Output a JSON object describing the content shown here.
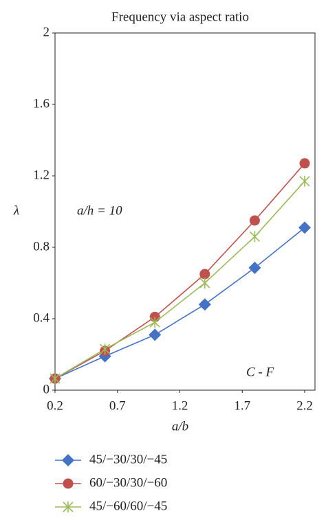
{
  "chart_data": {
    "type": "line",
    "title": "Frequency via aspect ratio",
    "x_label": "a/b",
    "y_label": "λ",
    "annotations": [
      "a/h = 10",
      "C - F"
    ],
    "x": [
      0.2,
      0.6,
      1.0,
      1.4,
      1.8,
      2.2
    ],
    "series": [
      {
        "name": "45/−30/30/−45",
        "color": "#4472c4",
        "marker": "diamond",
        "values": [
          0.065,
          0.19,
          0.31,
          0.48,
          0.685,
          0.91
        ]
      },
      {
        "name": "60/−30/30/−60",
        "color": "#c0504d",
        "marker": "circle",
        "values": [
          0.065,
          0.22,
          0.41,
          0.65,
          0.95,
          1.27
        ]
      },
      {
        "name": "45/−60/60/−45",
        "color": "#9bbb59",
        "marker": "star",
        "values": [
          0.065,
          0.23,
          0.38,
          0.6,
          0.86,
          1.17
        ]
      }
    ],
    "xlim": [
      0.2,
      2.2
    ],
    "xticks": [
      0.2,
      0.7,
      1.2,
      1.7,
      2.2
    ],
    "ylim": [
      0,
      2
    ],
    "yticks": [
      0,
      0.4,
      0.8,
      1.2,
      1.6,
      2
    ],
    "grid": false
  }
}
